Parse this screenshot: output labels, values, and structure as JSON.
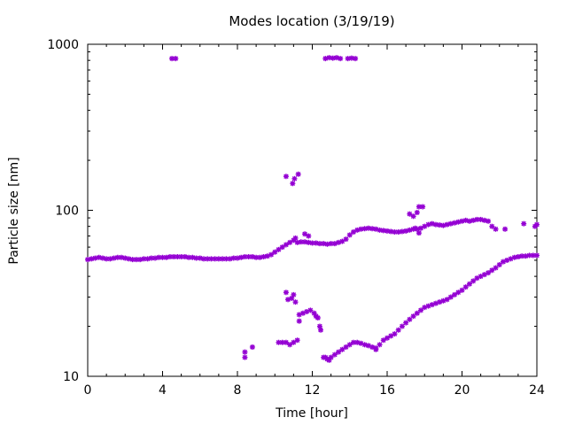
{
  "chart_data": {
    "type": "scatter",
    "title": "Modes location (3/19/19)",
    "xlabel": "Time [hour]",
    "ylabel": "Particle size [nm]",
    "xlim": [
      0,
      24
    ],
    "ylim": [
      10,
      1000
    ],
    "yscale": "log",
    "x_ticks": [
      0,
      4,
      8,
      12,
      16,
      20,
      24
    ],
    "y_ticks": [
      10,
      100,
      1000
    ],
    "x_tick_labels": [
      "0",
      "4",
      "8",
      "12",
      "16",
      "20",
      "24"
    ],
    "y_tick_labels": [
      "10",
      "100",
      "1000"
    ],
    "grid": false,
    "legend": "none",
    "marker": "asterisk",
    "marker_color": "#9400d3",
    "series": [
      {
        "points": [
          [
            0,
            50.5
          ],
          [
            0.2,
            51
          ],
          [
            0.4,
            51.5
          ],
          [
            0.6,
            52
          ],
          [
            0.8,
            51.5
          ],
          [
            1.0,
            51
          ],
          [
            1.2,
            51
          ],
          [
            1.4,
            51.5
          ],
          [
            1.6,
            52
          ],
          [
            1.8,
            52
          ],
          [
            2.0,
            51.5
          ],
          [
            2.2,
            51
          ],
          [
            2.4,
            50.5
          ],
          [
            2.6,
            50.5
          ],
          [
            2.8,
            50.5
          ],
          [
            3.0,
            51
          ],
          [
            3.2,
            51
          ],
          [
            3.4,
            51.5
          ],
          [
            3.6,
            51.5
          ],
          [
            3.8,
            52
          ],
          [
            4.0,
            52
          ],
          [
            4.2,
            52
          ],
          [
            4.4,
            52.5
          ],
          [
            4.6,
            52.5
          ],
          [
            4.8,
            52.5
          ],
          [
            5.0,
            52.5
          ],
          [
            5.2,
            52.5
          ],
          [
            5.4,
            52
          ],
          [
            5.6,
            52
          ],
          [
            5.8,
            51.5
          ],
          [
            6.0,
            51.5
          ],
          [
            6.2,
            51
          ],
          [
            6.4,
            51
          ],
          [
            6.6,
            51
          ],
          [
            6.8,
            51
          ],
          [
            7.0,
            51
          ],
          [
            7.2,
            51
          ],
          [
            7.4,
            51
          ],
          [
            7.6,
            51
          ],
          [
            7.8,
            51.5
          ],
          [
            8.0,
            51.5
          ],
          [
            8.2,
            52
          ],
          [
            8.4,
            52.5
          ],
          [
            8.6,
            52.5
          ],
          [
            8.8,
            52.5
          ],
          [
            9.0,
            52
          ],
          [
            9.2,
            52
          ],
          [
            9.4,
            52.5
          ],
          [
            9.6,
            53
          ],
          [
            9.8,
            54
          ],
          [
            10.0,
            56
          ],
          [
            10.2,
            58
          ],
          [
            10.4,
            60
          ],
          [
            10.6,
            62
          ],
          [
            10.8,
            64
          ],
          [
            11.0,
            66
          ],
          [
            11.1,
            68
          ]
        ]
      },
      {
        "points": [
          [
            11.2,
            64
          ],
          [
            11.4,
            64.5
          ],
          [
            11.6,
            64.5
          ],
          [
            11.8,
            64
          ],
          [
            12.0,
            63.5
          ],
          [
            12.2,
            63.5
          ],
          [
            12.4,
            63
          ],
          [
            12.6,
            63
          ],
          [
            12.8,
            62.5
          ],
          [
            13.0,
            63
          ],
          [
            13.2,
            63
          ],
          [
            13.4,
            64
          ],
          [
            13.6,
            65
          ],
          [
            13.8,
            67
          ],
          [
            14.0,
            71
          ],
          [
            14.2,
            74
          ],
          [
            14.4,
            76
          ],
          [
            14.6,
            77
          ],
          [
            14.8,
            77.5
          ],
          [
            15.0,
            78
          ],
          [
            15.2,
            77.5
          ],
          [
            15.4,
            77
          ],
          [
            15.6,
            76
          ],
          [
            15.8,
            75.5
          ],
          [
            16.0,
            75
          ],
          [
            16.2,
            74.5
          ],
          [
            16.4,
            74
          ],
          [
            16.6,
            74
          ],
          [
            16.8,
            74.5
          ],
          [
            17.0,
            75
          ],
          [
            17.2,
            76
          ],
          [
            17.4,
            77
          ],
          [
            17.6,
            77
          ],
          [
            17.8,
            78
          ],
          [
            18.0,
            80
          ],
          [
            18.2,
            82
          ],
          [
            18.4,
            83
          ],
          [
            18.6,
            82
          ],
          [
            18.8,
            81.5
          ],
          [
            19.0,
            81
          ],
          [
            19.2,
            82
          ],
          [
            19.4,
            83
          ],
          [
            19.6,
            84
          ],
          [
            19.8,
            85
          ],
          [
            20.0,
            86
          ],
          [
            20.2,
            87
          ],
          [
            20.4,
            86
          ],
          [
            20.6,
            87
          ],
          [
            20.8,
            88
          ],
          [
            21.0,
            88
          ],
          [
            21.2,
            87
          ],
          [
            21.4,
            86
          ],
          [
            21.6,
            80
          ],
          [
            21.8,
            77
          ]
        ]
      },
      {
        "points": [
          [
            10.2,
            16
          ],
          [
            10.4,
            16
          ],
          [
            10.6,
            16
          ],
          [
            10.8,
            15.5
          ],
          [
            11.0,
            16
          ],
          [
            11.2,
            16.5
          ],
          [
            12.6,
            13
          ],
          [
            12.8,
            12.7
          ],
          [
            13.0,
            13
          ],
          [
            13.2,
            13.5
          ],
          [
            13.4,
            14
          ],
          [
            13.6,
            14.5
          ],
          [
            13.8,
            15
          ],
          [
            14.0,
            15.5
          ],
          [
            14.2,
            16
          ],
          [
            14.4,
            16
          ],
          [
            14.6,
            15.8
          ],
          [
            14.8,
            15.5
          ],
          [
            15.0,
            15.3
          ],
          [
            15.2,
            15
          ],
          [
            15.4,
            14.8
          ],
          [
            15.6,
            15.5
          ],
          [
            15.8,
            16.5
          ],
          [
            16.0,
            17
          ],
          [
            16.2,
            17.5
          ],
          [
            16.4,
            18
          ],
          [
            16.6,
            19
          ],
          [
            16.8,
            20
          ],
          [
            17.0,
            21
          ],
          [
            17.2,
            22
          ],
          [
            17.4,
            23
          ],
          [
            17.6,
            24
          ],
          [
            17.8,
            25
          ],
          [
            18.0,
            26
          ],
          [
            18.2,
            26.5
          ],
          [
            18.4,
            27
          ],
          [
            18.6,
            27.5
          ],
          [
            18.8,
            28
          ],
          [
            19.0,
            28.5
          ],
          [
            19.2,
            29
          ],
          [
            19.4,
            30
          ],
          [
            19.6,
            31
          ],
          [
            19.8,
            32
          ],
          [
            20.0,
            33
          ],
          [
            20.2,
            34.5
          ],
          [
            20.4,
            36
          ],
          [
            20.6,
            37.5
          ],
          [
            20.8,
            39
          ],
          [
            21.0,
            40
          ],
          [
            21.2,
            41
          ],
          [
            21.4,
            42
          ],
          [
            21.6,
            43.5
          ],
          [
            21.8,
            45
          ],
          [
            22.0,
            47
          ],
          [
            22.2,
            49
          ],
          [
            22.4,
            50
          ],
          [
            22.6,
            51
          ],
          [
            22.8,
            52
          ],
          [
            23.0,
            52.5
          ],
          [
            23.2,
            53
          ],
          [
            23.4,
            53
          ],
          [
            23.6,
            53.5
          ],
          [
            23.8,
            53.5
          ],
          [
            24.0,
            53.5
          ]
        ]
      },
      {
        "points": [
          [
            4.5,
            820
          ],
          [
            4.7,
            820
          ],
          [
            12.7,
            820
          ],
          [
            12.9,
            830
          ],
          [
            13.1,
            825
          ],
          [
            13.3,
            830
          ],
          [
            13.5,
            820
          ],
          [
            13.9,
            820
          ],
          [
            14.1,
            825
          ],
          [
            14.3,
            820
          ],
          [
            10.6,
            160
          ],
          [
            10.95,
            145
          ],
          [
            11.05,
            155
          ],
          [
            11.25,
            165
          ],
          [
            10.6,
            32
          ],
          [
            10.7,
            29
          ],
          [
            10.9,
            29.5
          ],
          [
            11.0,
            31
          ],
          [
            11.1,
            28
          ],
          [
            11.3,
            21.5
          ],
          [
            11.3,
            23.5
          ],
          [
            11.5,
            24
          ],
          [
            11.7,
            24.5
          ],
          [
            11.9,
            25
          ],
          [
            12.1,
            24
          ],
          [
            12.2,
            23
          ],
          [
            12.3,
            22.5
          ],
          [
            12.4,
            20
          ],
          [
            12.45,
            19
          ],
          [
            11.6,
            72
          ],
          [
            11.8,
            70
          ],
          [
            8.4,
            14
          ],
          [
            8.4,
            13
          ],
          [
            8.8,
            15
          ],
          [
            12.7,
            13
          ],
          [
            12.9,
            12.5
          ],
          [
            15.4,
            14.5
          ],
          [
            17.2,
            95
          ],
          [
            17.4,
            92
          ],
          [
            17.6,
            97
          ],
          [
            17.7,
            105
          ],
          [
            17.9,
            105
          ],
          [
            17.5,
            78
          ],
          [
            17.7,
            73
          ],
          [
            22.3,
            77
          ],
          [
            23.3,
            83
          ],
          [
            24.0,
            82
          ],
          [
            23.9,
            80
          ]
        ]
      }
    ]
  }
}
